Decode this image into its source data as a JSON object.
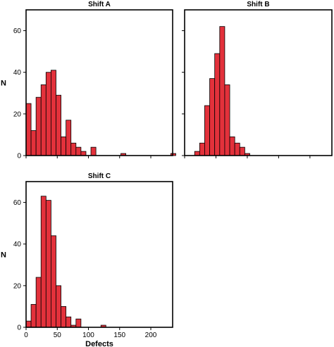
{
  "chart_data": [
    {
      "type": "bar",
      "title": "Shift A",
      "ylabel": "N",
      "xlabel": "",
      "bin_width": 8,
      "xlim": [
        0,
        235
      ],
      "ylim": [
        0,
        70
      ],
      "yticks": [
        0,
        20,
        40,
        60
      ],
      "xticks": [
        0,
        50,
        100,
        150,
        200
      ],
      "show_x_tick_labels": false,
      "bar_color": "#e3313b",
      "bins": [
        {
          "x0": 0,
          "value": 25
        },
        {
          "x0": 8,
          "value": 12
        },
        {
          "x0": 16,
          "value": 28
        },
        {
          "x0": 24,
          "value": 34
        },
        {
          "x0": 32,
          "value": 40
        },
        {
          "x0": 40,
          "value": 41
        },
        {
          "x0": 48,
          "value": 29
        },
        {
          "x0": 56,
          "value": 9
        },
        {
          "x0": 64,
          "value": 17
        },
        {
          "x0": 72,
          "value": 6
        },
        {
          "x0": 80,
          "value": 4
        },
        {
          "x0": 88,
          "value": 2
        },
        {
          "x0": 104,
          "value": 4
        },
        {
          "x0": 152,
          "value": 1
        },
        {
          "x0": 232,
          "value": 1
        }
      ]
    },
    {
      "type": "bar",
      "title": "Shift B",
      "ylabel": "",
      "xlabel": "",
      "bin_width": 8,
      "xlim": [
        0,
        235
      ],
      "ylim": [
        0,
        70
      ],
      "yticks": [
        0,
        20,
        40,
        60
      ],
      "xticks": [
        0,
        50,
        100,
        150,
        200
      ],
      "show_x_tick_labels": false,
      "show_y_tick_labels": false,
      "bar_color": "#e3313b",
      "bins": [
        {
          "x0": 16,
          "value": 2
        },
        {
          "x0": 24,
          "value": 6
        },
        {
          "x0": 32,
          "value": 24
        },
        {
          "x0": 40,
          "value": 37
        },
        {
          "x0": 48,
          "value": 49
        },
        {
          "x0": 56,
          "value": 62
        },
        {
          "x0": 64,
          "value": 34
        },
        {
          "x0": 72,
          "value": 9
        },
        {
          "x0": 80,
          "value": 6
        },
        {
          "x0": 88,
          "value": 4
        },
        {
          "x0": 96,
          "value": 1
        }
      ]
    },
    {
      "type": "bar",
      "title": "Shift C",
      "ylabel": "N",
      "xlabel": "Defects",
      "bin_width": 8,
      "xlim": [
        0,
        235
      ],
      "ylim": [
        0,
        70
      ],
      "yticks": [
        0,
        20,
        40,
        60
      ],
      "xticks": [
        0,
        50,
        100,
        150,
        200
      ],
      "show_x_tick_labels": true,
      "bar_color": "#e3313b",
      "bins": [
        {
          "x0": 0,
          "value": 3
        },
        {
          "x0": 8,
          "value": 11
        },
        {
          "x0": 16,
          "value": 24
        },
        {
          "x0": 24,
          "value": 63
        },
        {
          "x0": 32,
          "value": 61
        },
        {
          "x0": 40,
          "value": 44
        },
        {
          "x0": 48,
          "value": 20
        },
        {
          "x0": 56,
          "value": 10
        },
        {
          "x0": 64,
          "value": 5
        },
        {
          "x0": 72,
          "value": 1
        },
        {
          "x0": 80,
          "value": 4
        },
        {
          "x0": 120,
          "value": 1
        }
      ]
    }
  ]
}
